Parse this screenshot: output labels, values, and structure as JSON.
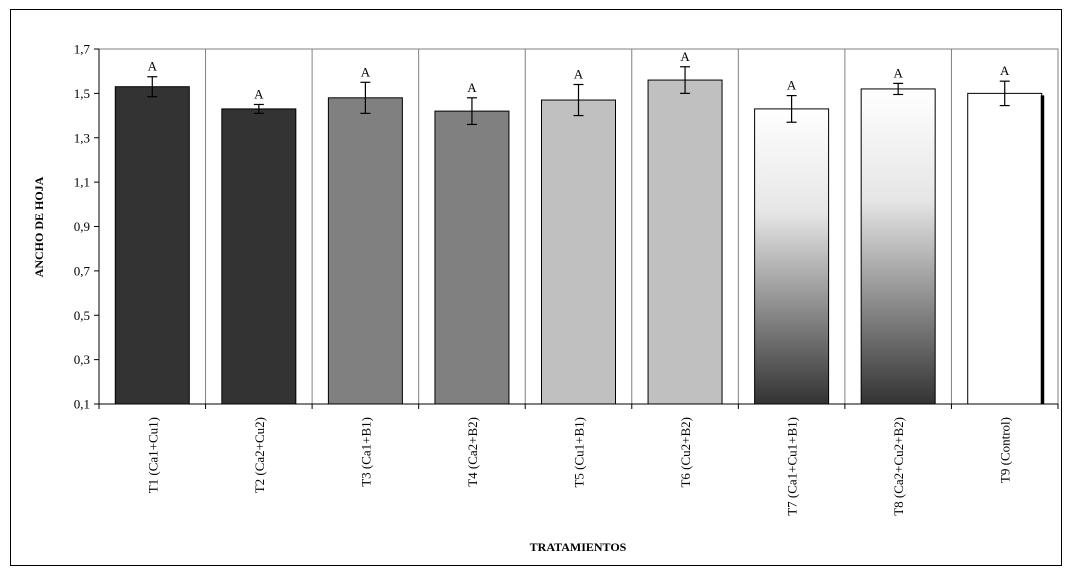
{
  "chart_data": {
    "type": "bar",
    "xlabel": "TRATAMIENTOS",
    "ylabel": "ANCHO DE HOJA",
    "ylim": [
      0.1,
      1.7
    ],
    "yticks": [
      "0,1",
      "0,3",
      "0,5",
      "0,7",
      "0,9",
      "1,1",
      "1,3",
      "1,5",
      "1,7"
    ],
    "grid": "vertical category dividers",
    "categories": [
      "T1 (Ca1+Cu1)",
      "T2 (Ca2+Cu2)",
      "T3 (Ca1+B1)",
      "T4 (Ca2+B2)",
      "T5 (Cu1+B1)",
      "T6 (Cu2+B2)",
      "T7 (Ca1+Cu1+B1)",
      "T8 (Ca2+Cu2+B2)",
      "T9 (Control)"
    ],
    "values": [
      1.53,
      1.43,
      1.48,
      1.42,
      1.47,
      1.56,
      1.43,
      1.52,
      1.5
    ],
    "errors": [
      0.045,
      0.02,
      0.07,
      0.06,
      0.07,
      0.06,
      0.06,
      0.025,
      0.055
    ],
    "labels": [
      "A",
      "A",
      "A",
      "A",
      "A",
      "A",
      "A",
      "A",
      "A"
    ],
    "colors": [
      "#333333",
      "#333333",
      "#808080",
      "#808080",
      "#c0c0c0",
      "#c0c0c0",
      "gradient-white-to-dark",
      "gradient-white-to-dark",
      "#ffffff"
    ]
  }
}
